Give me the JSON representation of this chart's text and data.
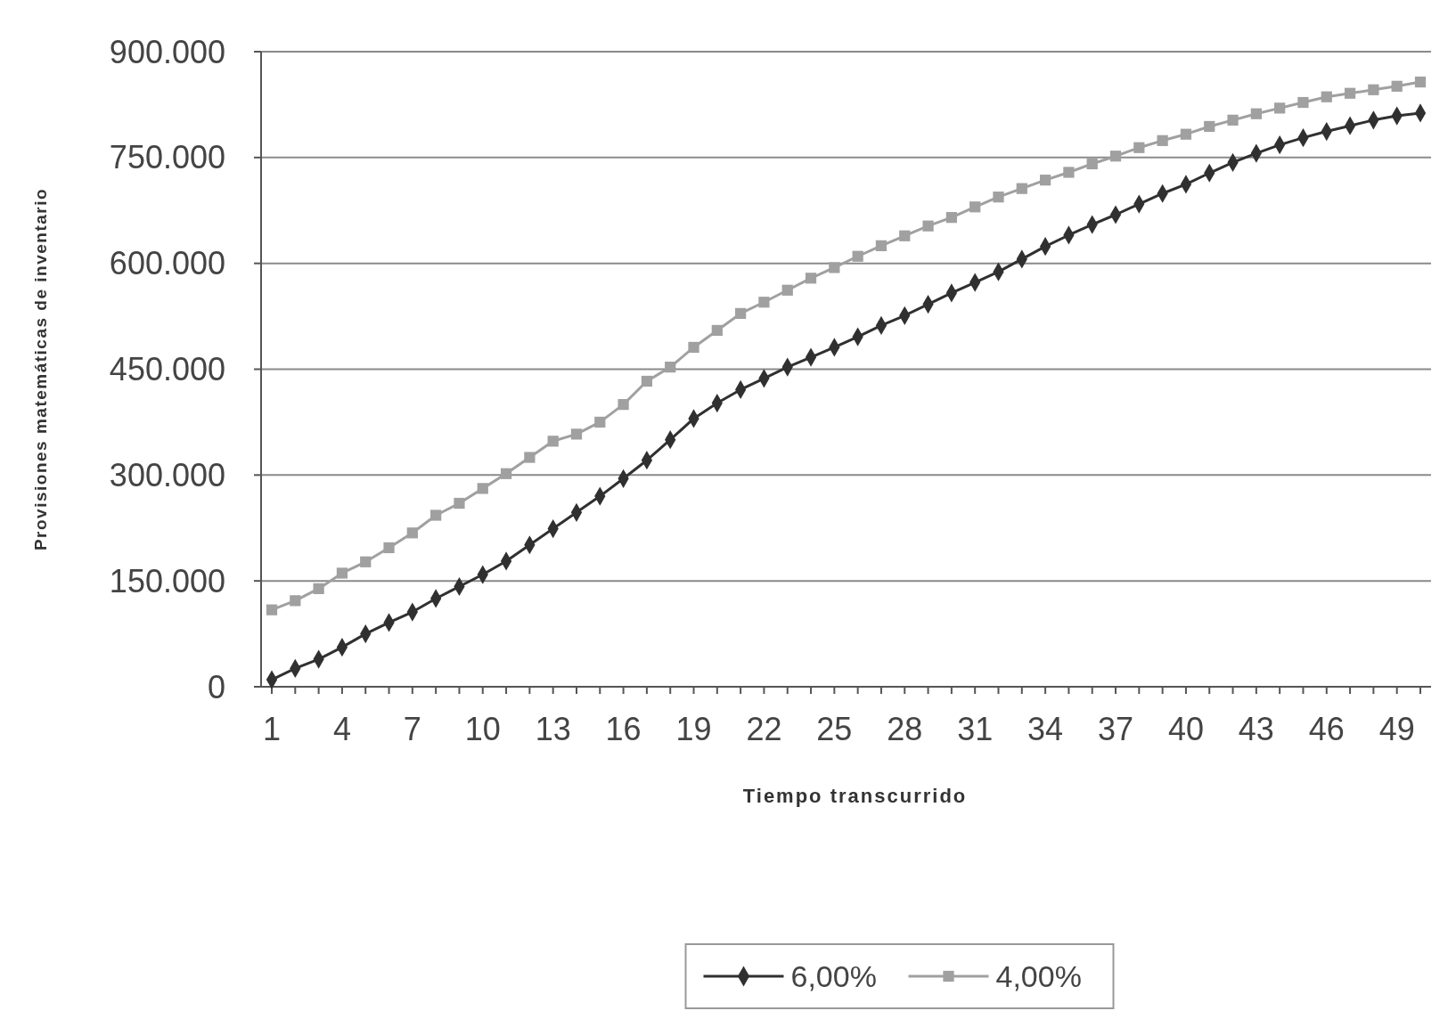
{
  "chart_data": {
    "type": "line",
    "xlabel": "Tiempo transcurrido",
    "ylabel": "Provisiones matemáticas de inventario",
    "categories": [
      "1",
      null,
      null,
      "4",
      null,
      null,
      "7",
      null,
      null,
      "10",
      null,
      null,
      "13",
      null,
      null,
      "16",
      null,
      null,
      "19",
      null,
      null,
      "22",
      null,
      null,
      "25",
      null,
      null,
      "28",
      null,
      null,
      "31",
      null,
      null,
      "34",
      null,
      null,
      "37",
      null,
      null,
      "40",
      null,
      null,
      "43",
      null,
      null,
      "46",
      null,
      null,
      "49",
      null
    ],
    "series": [
      {
        "name": "6,00%",
        "color": "#303030",
        "marker": "diamond",
        "values": [
          10000,
          26000,
          39000,
          56000,
          75000,
          91000,
          106000,
          125000,
          142000,
          159000,
          178000,
          201000,
          224000,
          247000,
          270000,
          295000,
          321000,
          350000,
          380000,
          402000,
          421000,
          437000,
          453000,
          467000,
          481000,
          496000,
          512000,
          526000,
          542000,
          558000,
          573000,
          588000,
          606000,
          624000,
          640000,
          655000,
          669000,
          684000,
          699000,
          712000,
          728000,
          743000,
          756000,
          768000,
          778000,
          787000,
          795000,
          803000,
          809000,
          813000
        ]
      },
      {
        "name": "4,00%",
        "color": "#a0a0a0",
        "marker": "square",
        "values": [
          109000,
          122000,
          139000,
          161000,
          177000,
          197000,
          218000,
          243000,
          260000,
          281000,
          302000,
          325000,
          348000,
          358000,
          375000,
          400000,
          433000,
          453000,
          481000,
          505000,
          529000,
          545000,
          562000,
          579000,
          594000,
          610000,
          625000,
          639000,
          653000,
          665000,
          680000,
          694000,
          706000,
          718000,
          729000,
          741000,
          752000,
          764000,
          774000,
          783000,
          794000,
          803000,
          812000,
          820000,
          828000,
          836000,
          841000,
          846000,
          851000,
          857000
        ]
      }
    ],
    "ylim": [
      0,
      900000
    ],
    "yticks": [
      0,
      {
        "value": 150000,
        "label": "150.000"
      },
      {
        "value": 300000,
        "label": "300.000"
      },
      {
        "value": 450000,
        "label": "450.000"
      },
      {
        "value": 600000,
        "label": "600.000"
      },
      {
        "value": 750000,
        "label": "750.000"
      },
      {
        "value": 900000,
        "label": "900.000"
      }
    ],
    "grid": "y",
    "legend": "bottom",
    "line_style": "solid"
  }
}
